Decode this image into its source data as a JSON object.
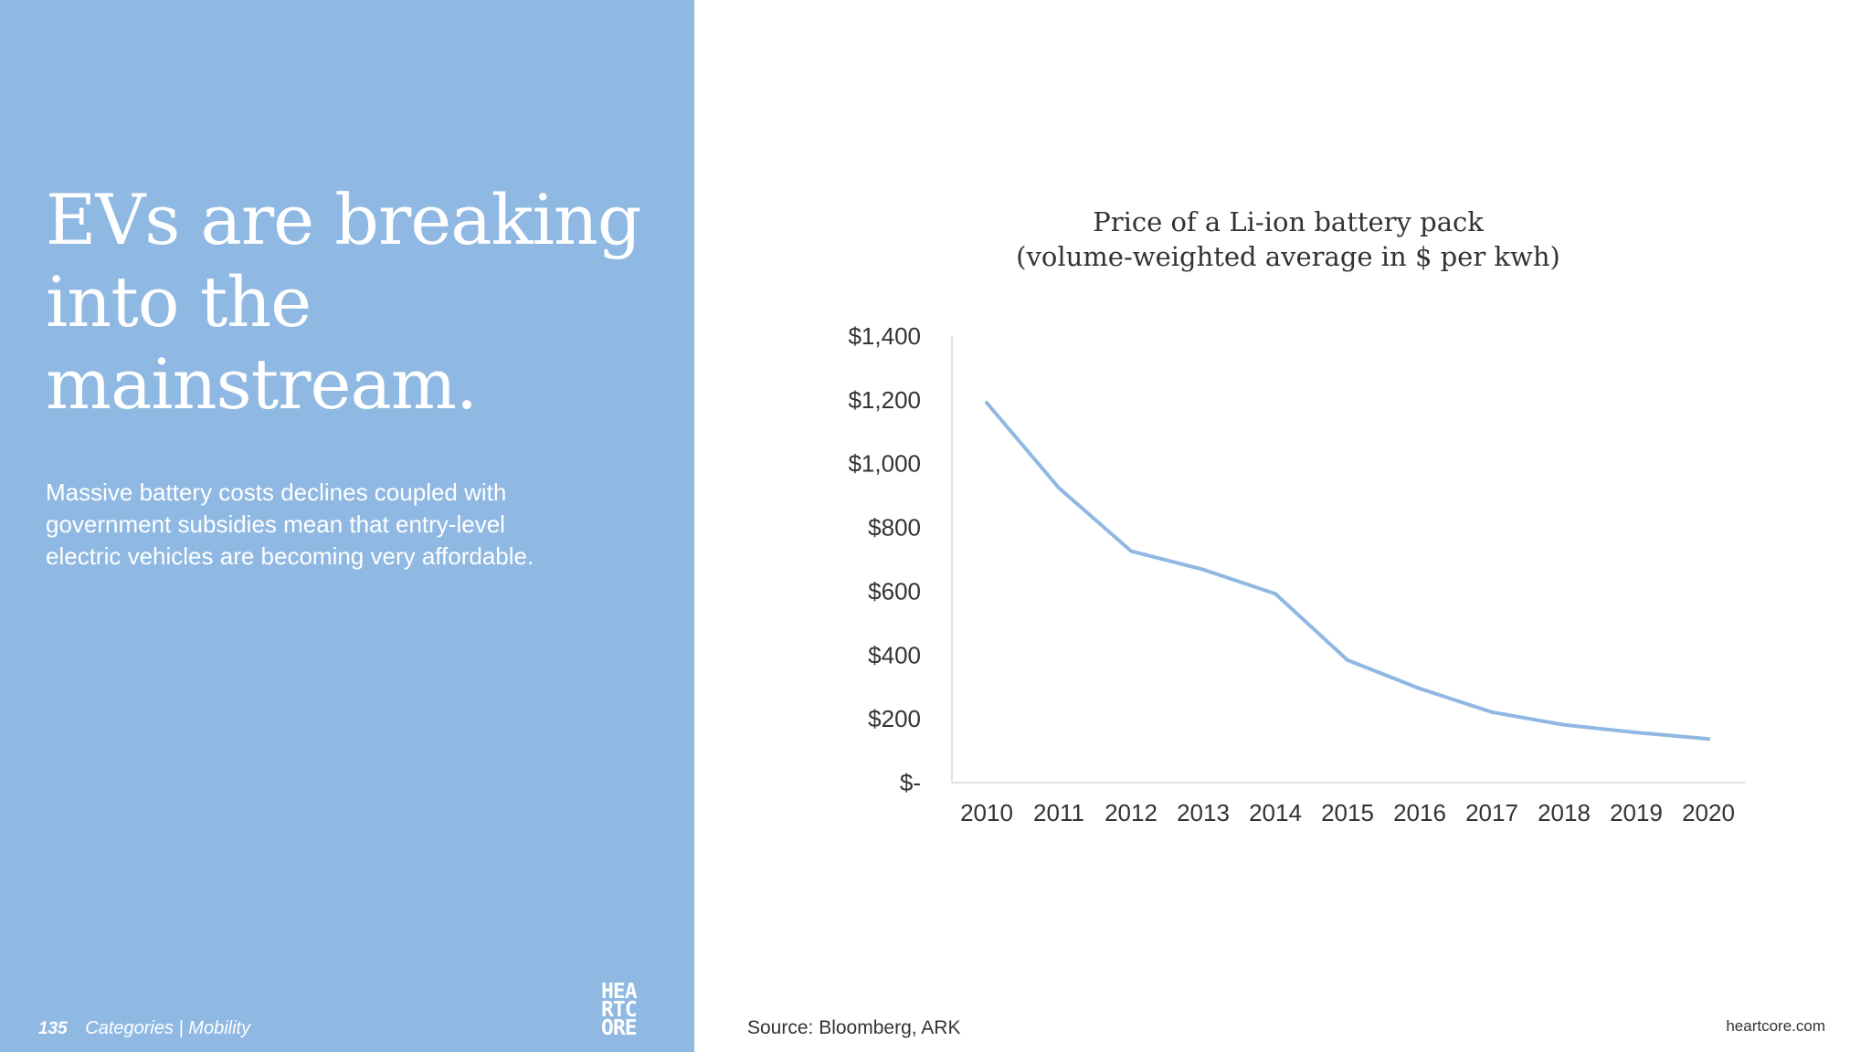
{
  "slide": {
    "headline_lines": [
      "EVs are breaking",
      "into the",
      "mainstream."
    ],
    "body_lines": [
      "Massive battery costs declines coupled with",
      "government subsidies mean that entry-level",
      "electric vehicles are becoming very affordable."
    ],
    "page_number": "135",
    "section": "Categories | Mobility",
    "logo_lines": [
      "HEA",
      "RTC",
      "ORE"
    ],
    "source": "Source: Bloomberg, ARK",
    "site": "heartcore.com"
  },
  "colors": {
    "panel": "#8fb8e2",
    "line": "#8fb8e2",
    "axis": "#d9d9d9",
    "text": "#333333"
  },
  "chart_data": {
    "type": "line",
    "title_lines": [
      "Price of a Li-ion battery pack",
      "(volume-weighted average in $ per kwh)"
    ],
    "categories": [
      "2010",
      "2011",
      "2012",
      "2013",
      "2014",
      "2015",
      "2016",
      "2017",
      "2018",
      "2019",
      "2020"
    ],
    "series": [
      {
        "values": [
          1191,
          924,
          726,
          668,
          592,
          384,
          295,
          221,
          181,
          157,
          137
        ]
      }
    ],
    "y_ticks": [
      0,
      200,
      400,
      600,
      800,
      1000,
      1200,
      1400
    ],
    "y_tick_labels": [
      "$-",
      "$200",
      "$400",
      "$600",
      "$800",
      "$1,000",
      "$1,200",
      "$1,400"
    ],
    "ylim": [
      0,
      1400
    ],
    "grid": false
  }
}
